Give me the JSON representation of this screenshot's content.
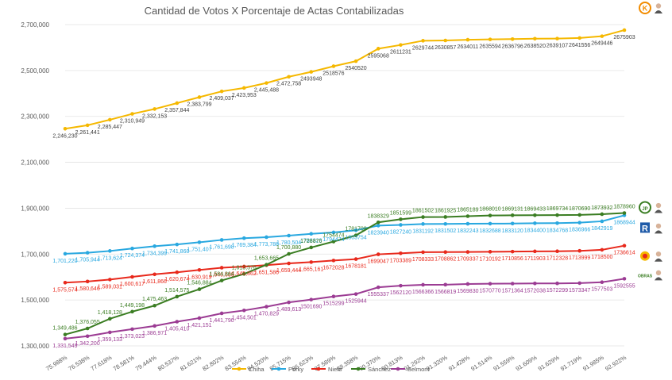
{
  "chart_data": {
    "type": "line",
    "title": "Cantidad de Votos X Porcentaje de Actas Contabilizadas",
    "xlabel": "",
    "ylabel": "",
    "ylim": [
      1300000,
      2700000
    ],
    "yticks": [
      "1,300,000",
      "1,500,000",
      "1,700,000",
      "1,900,000",
      "2,100,000",
      "2,300,000",
      "2,500,000",
      "2,700,000"
    ],
    "categories": [
      "75.988%",
      "76.538%",
      "77.618%",
      "78.581%",
      "79.444%",
      "80.537%",
      "81.621%",
      "82.802%",
      "83.554%",
      "84.520%",
      "85.715%",
      "86.623%",
      "87.589%",
      "88.358%",
      "90.370%",
      "90.813%",
      "91.292%",
      "91.320%",
      "91.428%",
      "91.514%",
      "91.559%",
      "91.609%",
      "91.629%",
      "91.719%",
      "91.985%",
      "92.922%"
    ],
    "x_tick_labels": [
      "75.988%",
      "76.538%",
      "77.618%",
      "78.581%",
      "79.444%",
      "80.537%",
      "81.621%",
      "82.802%",
      "83.554%",
      "84.520%",
      "85.715%",
      "86.623%",
      "87.589%",
      "88.358%",
      "90.370%",
      "90.813%",
      "91.292%",
      "91.320%",
      "91.428%",
      "91.514%",
      "91.559%",
      "91.609%",
      "91.629%",
      "91.719%",
      "91.985%",
      "92.922%"
    ],
    "series": [
      {
        "name": "Chiha",
        "color": "#F5B800",
        "values": [
          2246230,
          2261441,
          2285447,
          2310949,
          2332153,
          2357844,
          2383799,
          2409037,
          2423953,
          2445488,
          2472758,
          2493948,
          2518576,
          2540520,
          2595068,
          2611231,
          2629744,
          2630857,
          2634011,
          2635594,
          2636796,
          2638520,
          2639107,
          2641556,
          2649446,
          2675903
        ],
        "labels": [
          "2,246,230",
          "2,261,441",
          "2,285,447",
          "2,310,949",
          "2,332,153",
          "2,357,844",
          "2,383,799",
          "2,409,037",
          "2,423,953",
          "2,445,488",
          "2,472,758",
          "2493948",
          "2518576",
          "2540520",
          "2595068",
          "2611231",
          "2629744",
          "2630857",
          "2634011",
          "2635594",
          "2636796",
          "2638520",
          "2639107",
          "2641556",
          "2649446",
          "2675903"
        ]
      },
      {
        "name": "Porky",
        "color": "#29A8E0",
        "values": [
          1701220,
          1705944,
          1713624,
          1724374,
          1734399,
          1741860,
          1751407,
          1761698,
          1769384,
          1773788,
          1780504,
          1788323,
          1794474,
          1803754,
          1823940,
          1827240,
          1831192,
          1831502,
          1832243,
          1832688,
          1833120,
          1834400,
          1834768,
          1836966,
          1842919,
          1868944
        ],
        "labels": [
          "1,701,220",
          "1,705,944",
          "1,713,624",
          "1,724,374",
          "1,734,399",
          "1,741,860",
          "1,751,407",
          "1,761,698",
          "1,769,384",
          "1,773,788",
          "1,780,504",
          "1788323",
          "1794474",
          "1803754",
          "1823940",
          "1827240",
          "1831192",
          "1831502",
          "1832243",
          "1832688",
          "1833120",
          "1834400",
          "1834768",
          "1836966",
          "1842919",
          "1868944"
        ]
      },
      {
        "name": "Nieto",
        "color": "#E8291C",
        "values": [
          1575574,
          1580646,
          1589031,
          1600617,
          1611866,
          1620674,
          1630919,
          1640685,
          1645862,
          1651586,
          1659444,
          1665161,
          1672028,
          1678181,
          1699047,
          1703389,
          1708333,
          1708862,
          1709337,
          1710192,
          1710856,
          1711903,
          1712328,
          1713999,
          1718500,
          1736614
        ],
        "labels": [
          "1,575,574",
          "1,580,646",
          "1,589,031",
          "1,600,617",
          "1,611,866",
          "1,620,674",
          "1,630,919",
          "1,640,685",
          "1,645,862",
          "1,651,586",
          "1,659,444",
          "1,665,161",
          "1672028",
          "1678181",
          "1699047",
          "1703389",
          "1708333",
          "1708862",
          "1709337",
          "1710192",
          "1710856",
          "1711903",
          "1712328",
          "1713999",
          "1718500",
          "1736614"
        ]
      },
      {
        "name": "Sánchez",
        "color": "#3A7D22",
        "values": [
          1349486,
          1376055,
          1418128,
          1449198,
          1475463,
          1514575,
          1546884,
          1584864,
          1613576,
          1653665,
          1700880,
          1728876,
          1754474,
          1781709,
          1838329,
          1851599,
          1861502,
          1861925,
          1865189,
          1868010,
          1869131,
          1869433,
          1869734,
          1870690,
          1873932,
          1878960
        ],
        "labels": [
          "1,349,486",
          "1,376,055",
          "1,418,128",
          "1,449,198",
          "1,475,463",
          "1,514,575",
          "1,546,884",
          "1,584,864",
          "1,613,576",
          "1,653,665",
          "1,700,880",
          "1728876",
          "1754474",
          "1781709",
          "1838329",
          "1851599",
          "1861502",
          "1861925",
          "1865189",
          "1868010",
          "1869131",
          "1869433",
          "1869734",
          "1870690",
          "1873932",
          "1878960"
        ]
      },
      {
        "name": "Belmont",
        "color": "#9B3B93",
        "values": [
          1331549,
          1342200,
          1359133,
          1373023,
          1386971,
          1405410,
          1421151,
          1441790,
          1454501,
          1470829,
          1489613,
          1501690,
          1515299,
          1525944,
          1555337,
          1562120,
          1566366,
          1566819,
          1569830,
          1570770,
          1571364,
          1572038,
          1572299,
          1573347,
          1577503,
          1592555
        ],
        "labels": [
          "1,331,549",
          "1,342,200",
          "1,359,133",
          "1,373,023",
          "1,386,971",
          "1,405,410",
          "1,421,151",
          "1,441,790",
          "1,454,501",
          "1,470,829",
          "1,489,613",
          "1501690",
          "1515299",
          "1525944",
          "1555337",
          "1562120",
          "1566366",
          "1566819",
          "1569830",
          "1570770",
          "1571364",
          "1572038",
          "1572299",
          "1573347",
          "1577503",
          "1592555"
        ]
      }
    ],
    "legend": {
      "position": "bottom",
      "entries": [
        "Chiha",
        "Porky",
        "Nieto",
        "Sánchez",
        "Belmont"
      ]
    },
    "end_logos": [
      {
        "series": "Chiha",
        "symbol": "K",
        "color": "#F28C00"
      },
      {
        "series": "Sánchez",
        "symbol": "JP",
        "color": "#3A7D22"
      },
      {
        "series": "Porky",
        "symbol": "R",
        "color": "#1E5AA8"
      },
      {
        "series": "Nieto",
        "symbol": "sun",
        "color": "#E8291C"
      },
      {
        "series": "Belmont",
        "symbol": "OBRAS",
        "color": "#3A7D22"
      }
    ],
    "grid": true
  }
}
